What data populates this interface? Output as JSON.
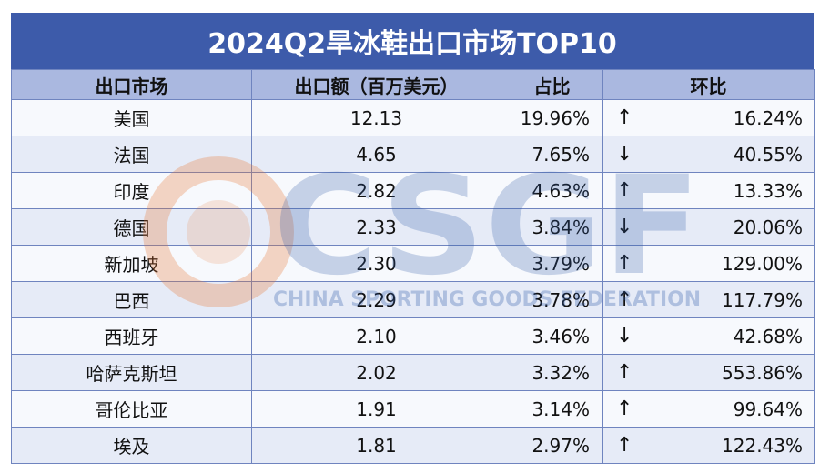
{
  "title": "2024Q2旱冰鞋出口市场TOP10",
  "headers": [
    "出口市场",
    "出口额（百万美元）",
    "占比",
    "环比"
  ],
  "rows": [
    {
      "market": "美国",
      "value": "12.13",
      "share": "19.96%",
      "trend": "up",
      "mom": "16.24%"
    },
    {
      "market": "法国",
      "value": "4.65",
      "share": "7.65%",
      "trend": "down",
      "mom": "40.55%"
    },
    {
      "market": "印度",
      "value": "2.82",
      "share": "4.63%",
      "trend": "up",
      "mom": "13.33%"
    },
    {
      "market": "德国",
      "value": "2.33",
      "share": "3.84%",
      "trend": "down",
      "mom": "20.06%"
    },
    {
      "market": "新加坡",
      "value": "2.30",
      "share": "3.79%",
      "trend": "up",
      "mom": "129.00%"
    },
    {
      "market": "巴西",
      "value": "2.29",
      "share": "3.78%",
      "trend": "up",
      "mom": "117.79%"
    },
    {
      "market": "西班牙",
      "value": "2.10",
      "share": "3.46%",
      "trend": "down",
      "mom": "42.68%"
    },
    {
      "market": "哈萨克斯坦",
      "value": "2.02",
      "share": "3.32%",
      "trend": "up",
      "mom": "553.86%"
    },
    {
      "market": "哥伦比亚",
      "value": "1.91",
      "share": "3.14%",
      "trend": "up",
      "mom": "99.64%"
    },
    {
      "market": "埃及",
      "value": "1.81",
      "share": "2.97%",
      "trend": "up",
      "mom": "122.43%"
    }
  ],
  "arrows": {
    "up": "↑",
    "down": "↓"
  },
  "watermark": {
    "logo": "CSGF",
    "text": "CHINA SPORTING GOODS FEDERATION"
  },
  "colors": {
    "title_bg": "#3d5baa",
    "header_bg": "#aab8e0",
    "row_light": "#f7f9fd",
    "row_dark": "#e6ebf7",
    "border": "#6f84bf"
  }
}
